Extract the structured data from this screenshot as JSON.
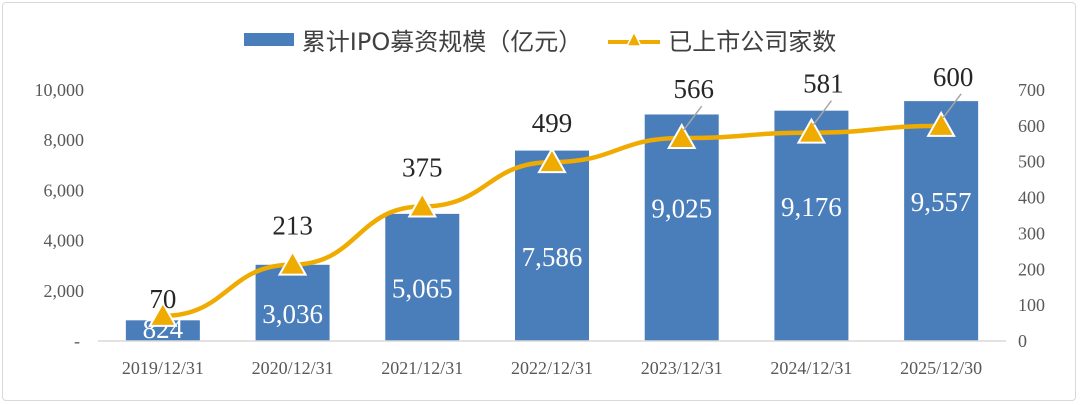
{
  "chart_data": {
    "type": "bar+line",
    "categories": [
      "2019/12/31",
      "2020/12/31",
      "2021/12/31",
      "2022/12/31",
      "2023/12/31",
      "2024/12/31",
      "2025/12/30"
    ],
    "series": [
      {
        "name": "累计IPO募资规模（亿元）",
        "type": "bar",
        "axis": "left",
        "color": "#4a7ebb",
        "values": [
          824,
          3036,
          5065,
          7586,
          9025,
          9176,
          9557
        ],
        "labels": [
          "824",
          "3,036",
          "5,065",
          "7,586",
          "9,025",
          "9,176",
          "9,557"
        ]
      },
      {
        "name": "已上市公司家数",
        "type": "line",
        "axis": "right",
        "color": "#f0ab00",
        "values": [
          70,
          213,
          375,
          499,
          566,
          581,
          600
        ],
        "labels": [
          "70",
          "213",
          "375",
          "499",
          "566",
          "581",
          "600"
        ]
      }
    ],
    "left_axis": {
      "ylim": [
        0,
        10000
      ],
      "ticks": [
        "-",
        "2,000",
        "4,000",
        "6,000",
        "8,000",
        "10,000"
      ]
    },
    "right_axis": {
      "ylim": [
        0,
        700
      ],
      "ticks": [
        "0",
        "100",
        "200",
        "300",
        "400",
        "500",
        "600",
        "700"
      ]
    },
    "legend_position": "top",
    "grid": false
  }
}
